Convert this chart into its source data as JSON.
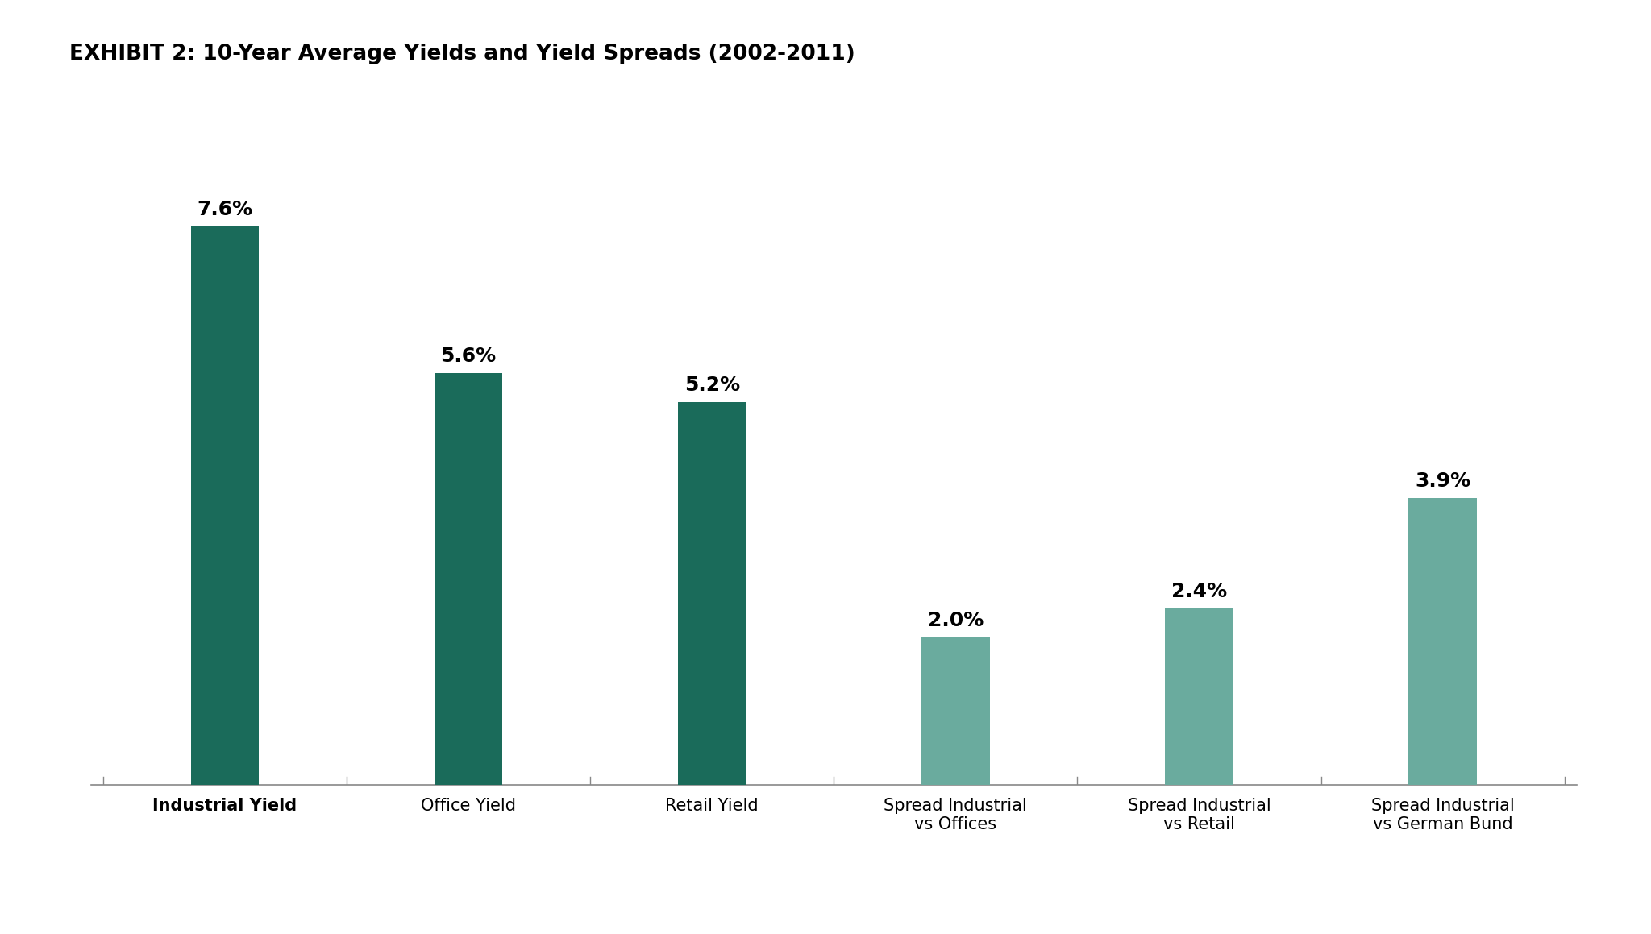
{
  "title": "EXHIBIT 2: 10-Year Average Yields and Yield Spreads (2002-2011)",
  "categories": [
    "Industrial Yield",
    "Office Yield",
    "Retail Yield",
    "Spread Industrial\nvs Offices",
    "Spread Industrial\nvs Retail",
    "Spread Industrial\nvs German Bund"
  ],
  "values": [
    7.6,
    5.6,
    5.2,
    2.0,
    2.4,
    3.9
  ],
  "labels": [
    "7.6%",
    "5.6%",
    "5.2%",
    "2.0%",
    "2.4%",
    "3.9%"
  ],
  "bar_colors": [
    "#1a6b5a",
    "#1a6b5a",
    "#1a6b5a",
    "#6aab9e",
    "#6aab9e",
    "#6aab9e"
  ],
  "title_bg_color": "#c0c0c0",
  "plot_bg_color": "#ffffff",
  "fig_bg_color": "#ffffff",
  "ylim": [
    0,
    9
  ],
  "value_fontsize": 18,
  "xlabel_fontsize": 15,
  "title_fontsize": 19
}
